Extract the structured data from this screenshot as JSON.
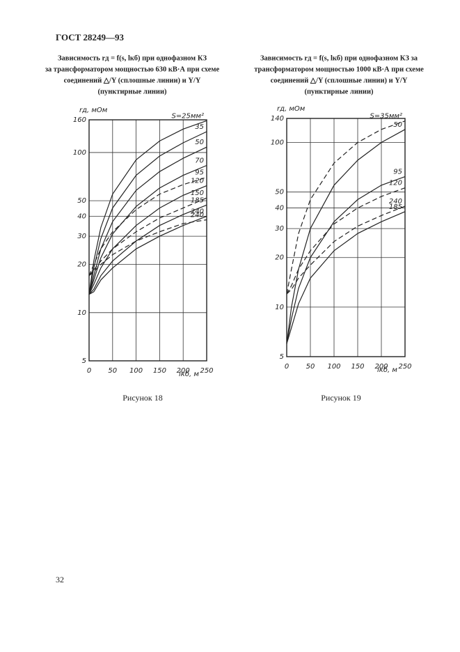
{
  "header": "ГОСТ 28249—93",
  "page_number": "32",
  "chart_data": [
    {
      "type": "line",
      "title": [
        "Зависимость rд = f(s, lкб) при однофазном КЗ",
        "за трансформатором мощностью 630 кВ·А при схеме",
        "соединений △/Y   (сплошные линии) и Y/Y",
        "(пунктирные линии)"
      ],
      "ylabel": "rд, мОм",
      "xlabel": "lкб, м",
      "caption": "Рисунок 18",
      "log_y": true,
      "grid": true,
      "xlim": [
        0,
        250
      ],
      "xticks": [
        0,
        50,
        100,
        150,
        200,
        250
      ],
      "ylim": [
        5,
        160
      ],
      "yticks": [
        5,
        10,
        20,
        30,
        40,
        50,
        100,
        160
      ],
      "x": [
        0,
        10,
        25,
        50,
        100,
        150,
        200,
        250
      ],
      "series": [
        {
          "name": "S=25мм²",
          "color": "#222",
          "dashed": false,
          "values": [
            13,
            21,
            34,
            55,
            90,
            118,
            140,
            158
          ]
        },
        {
          "name": "35",
          "color": "#222",
          "dashed": false,
          "values": [
            13,
            19,
            29,
            45,
            72,
            95,
            115,
            135
          ]
        },
        {
          "name": "50",
          "color": "#222",
          "dashed": false,
          "values": [
            13,
            17,
            25,
            37,
            58,
            76,
            92,
            108
          ]
        },
        {
          "name": "70",
          "color": "#222",
          "dashed": false,
          "values": [
            13,
            16,
            22,
            31,
            46,
            60,
            72,
            83
          ]
        },
        {
          "name": "120",
          "color": "#222",
          "dashed": false,
          "values": [
            13,
            15,
            19,
            25,
            35,
            45,
            54,
            62
          ]
        },
        {
          "name": "185",
          "color": "#222",
          "dashed": false,
          "values": [
            13,
            14,
            17,
            21,
            28,
            35,
            41,
            47
          ]
        },
        {
          "name": "240",
          "color": "#222",
          "dashed": false,
          "values": [
            13,
            13.5,
            16,
            19,
            25,
            30,
            35,
            40
          ]
        },
        {
          "name": "95",
          "color": "#222",
          "dashed": true,
          "values": [
            17,
            20,
            25,
            32,
            44,
            55,
            63,
            70
          ]
        },
        {
          "name": "150",
          "color": "#222",
          "dashed": true,
          "values": [
            17,
            18.5,
            21,
            25,
            32,
            39,
            45,
            52
          ]
        },
        {
          "name": "240",
          "color": "#222",
          "dashed": true,
          "values": [
            17,
            18,
            20,
            23,
            28,
            32,
            36,
            38
          ]
        }
      ]
    },
    {
      "type": "line",
      "title": [
        "Зависимость rд = f(s, lкб) при однофазном КЗ за",
        "трансформатором мощностью 1000 кВ·А при схеме",
        "соединений △/Y  (сплошные линии) и Y/Y",
        "(пунктирные линии)"
      ],
      "ylabel": "rд, мОм",
      "xlabel": "lкб, м",
      "caption": "Рисунок 19",
      "log_y": true,
      "grid": true,
      "xlim": [
        0,
        250
      ],
      "xticks": [
        0,
        50,
        100,
        150,
        200,
        250
      ],
      "ylim": [
        5,
        140
      ],
      "yticks": [
        5,
        10,
        20,
        30,
        40,
        50,
        100,
        140
      ],
      "x": [
        0,
        10,
        25,
        50,
        100,
        150,
        200,
        250
      ],
      "series": [
        {
          "name": "50",
          "color": "#222",
          "dashed": false,
          "values": [
            6,
            10,
            17,
            30,
            55,
            78,
            100,
            120
          ]
        },
        {
          "name": "95",
          "color": "#222",
          "dashed": false,
          "values": [
            6,
            8.5,
            13,
            20,
            33,
            45,
            55,
            62
          ]
        },
        {
          "name": "185",
          "color": "#222",
          "dashed": false,
          "values": [
            6,
            7.5,
            10.5,
            15,
            22,
            28,
            33,
            38
          ]
        },
        {
          "name": "S=35мм²",
          "color": "#222",
          "dashed": true,
          "values": [
            12,
            17,
            28,
            45,
            75,
            100,
            120,
            135
          ]
        },
        {
          "name": "120",
          "color": "#222",
          "dashed": true,
          "values": [
            12,
            13.5,
            17,
            22,
            32,
            40,
            47,
            53
          ]
        },
        {
          "name": "240",
          "color": "#222",
          "dashed": true,
          "values": [
            12,
            12.8,
            15,
            18,
            25,
            31,
            36,
            41
          ]
        }
      ]
    }
  ]
}
